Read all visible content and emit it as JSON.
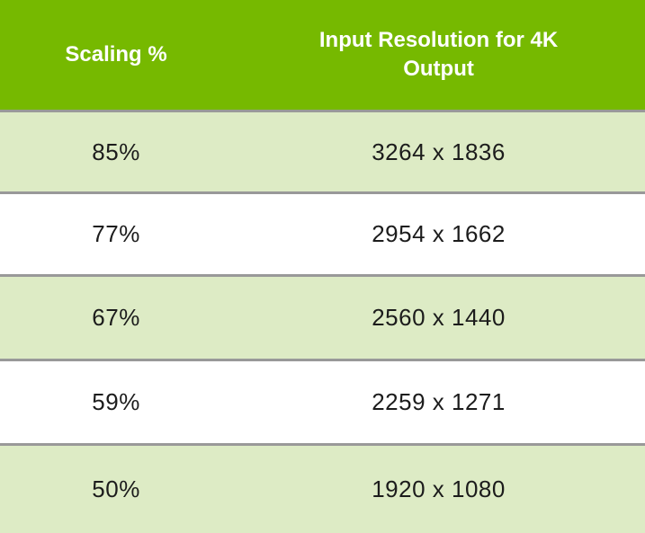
{
  "table": {
    "headers": [
      {
        "label": "Scaling %"
      },
      {
        "label": "Input Resolution for 4K Output"
      }
    ],
    "rows": [
      {
        "scaling": "85%",
        "resolution": "3264 x 1836"
      },
      {
        "scaling": "77%",
        "resolution": "2954 x 1662"
      },
      {
        "scaling": "67%",
        "resolution": "2560 x 1440"
      },
      {
        "scaling": "59%",
        "resolution": "2259 x 1271"
      },
      {
        "scaling": "50%",
        "resolution": "1920 x 1080"
      }
    ],
    "colors": {
      "header_bg": "#76B900",
      "header_text": "#FFFFFF",
      "row_alt_bg": "#DDEBC5",
      "row_bg": "#FFFFFF",
      "separator": "#999999",
      "body_text": "#1C1C1C"
    }
  },
  "chart_data": {
    "type": "table",
    "columns": [
      "Scaling %",
      "Input Resolution for 4K Output"
    ],
    "rows": [
      [
        "85%",
        "3264 x 1836"
      ],
      [
        "77%",
        "2954 x 1662"
      ],
      [
        "67%",
        "2560 x 1440"
      ],
      [
        "59%",
        "2259 x 1271"
      ],
      [
        "50%",
        "1920 x 1080"
      ]
    ],
    "title": "",
    "layout": {
      "header_position": "top",
      "zebra_striping": true
    }
  }
}
